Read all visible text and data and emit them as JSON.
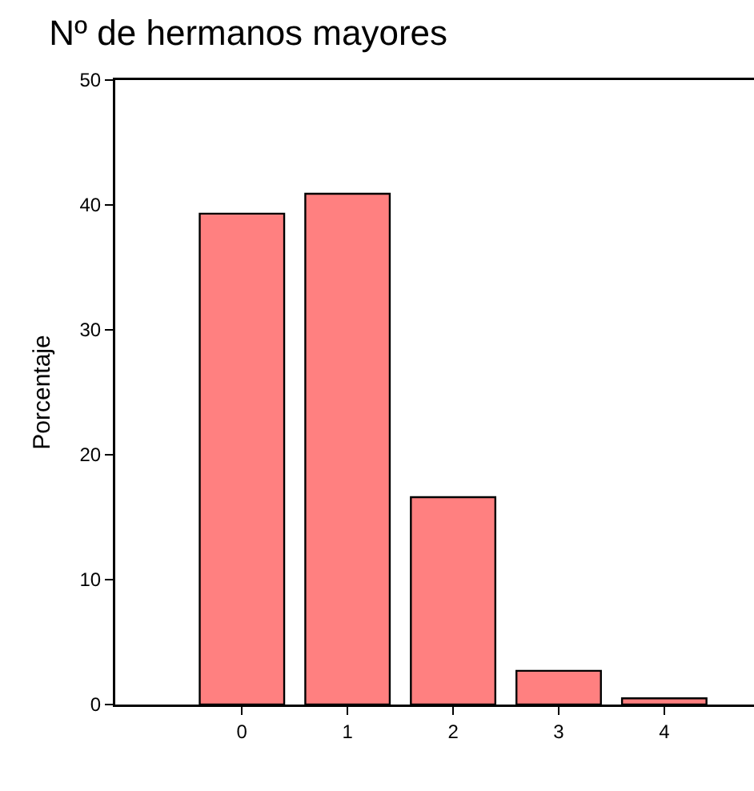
{
  "chart_data": {
    "type": "bar",
    "title": "Nº de hermanos mayores",
    "ylabel": "Porcentaje",
    "categories": [
      "0",
      "1",
      "2",
      "3",
      "4"
    ],
    "values": [
      39.3,
      40.9,
      16.6,
      2.7,
      0.5
    ],
    "color": "#ff8080",
    "ylim": [
      0,
      50
    ],
    "yticks": [
      0,
      10,
      20,
      30,
      40,
      50
    ],
    "grid": false
  }
}
